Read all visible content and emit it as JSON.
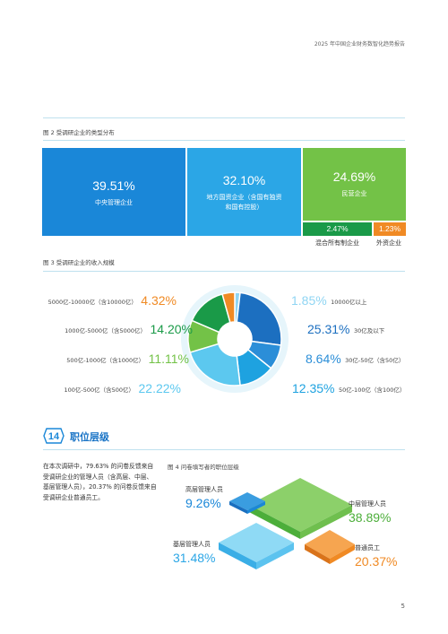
{
  "header": {
    "title": "2025 年中国企业财务数智化趋势报告"
  },
  "figure2": {
    "title": "图 2 受调研企业的类型分布",
    "cells": [
      {
        "pct": "39.51%",
        "label": "中央管理企业",
        "color": "#1a87d8"
      },
      {
        "pct": "32.10%",
        "label": "地方国资企业（含国有独资和国有控股）",
        "label_line1": "地方国资企业（含国有独资",
        "label_line2": "和国有控股）",
        "color": "#2ba6e6"
      },
      {
        "pct": "24.69%",
        "label": "民营企业",
        "color": "#73c247"
      },
      {
        "pct": "2.47%",
        "label": "混合所有制企业",
        "color": "#1a9a48"
      },
      {
        "pct": "1.23%",
        "label": "外资企业",
        "color": "#f08a24"
      }
    ]
  },
  "figure3": {
    "title": "图 3 受调研企业的收入规模",
    "left": [
      {
        "label": "5000亿-10000亿（含10000亿）",
        "pct": "4.32%",
        "color": "#f08a24"
      },
      {
        "label": "1000亿-5000亿（含5000亿）",
        "pct": "14.20%",
        "color": "#1a9a48"
      },
      {
        "label": "500亿-1000亿（含1000亿）",
        "pct": "11.11%",
        "color": "#73c247"
      },
      {
        "label": "100亿-500亿（含500亿）",
        "pct": "22.22%",
        "color": "#5cc8ef"
      }
    ],
    "right": [
      {
        "label": "10000亿以上",
        "pct": "1.85%",
        "color": "#8fd5f3"
      },
      {
        "label": "30亿及以下",
        "pct": "25.31%",
        "color": "#1c6fc0"
      },
      {
        "label": "30亿-50亿（含50亿）",
        "pct": "8.64%",
        "color": "#2b8ed8"
      },
      {
        "label": "50亿-100亿（含100亿）",
        "pct": "12.35%",
        "color": "#1ea2e0"
      }
    ]
  },
  "section14": {
    "number": "14",
    "title": "职位层级",
    "body": "在本次调研中，79.63% 的问卷反馈来自受调研企业的管理人员（含高层、中层、基层管理人员），20.37% 的问卷反馈来自受调研企业普通员工。"
  },
  "figure4": {
    "title": "图 4 问卷填写者的职位层级",
    "items": [
      {
        "label": "高层管理人员",
        "pct": "9.26%",
        "color": "#1a87d8"
      },
      {
        "label": "中层管理人员",
        "pct": "38.89%",
        "color": "#4cae3a"
      },
      {
        "label": "基层管理人员",
        "pct": "31.48%",
        "color": "#2ba6e6"
      },
      {
        "label": "普通员工",
        "pct": "20.37%",
        "color": "#f08a24"
      }
    ]
  },
  "page_number": "5"
}
